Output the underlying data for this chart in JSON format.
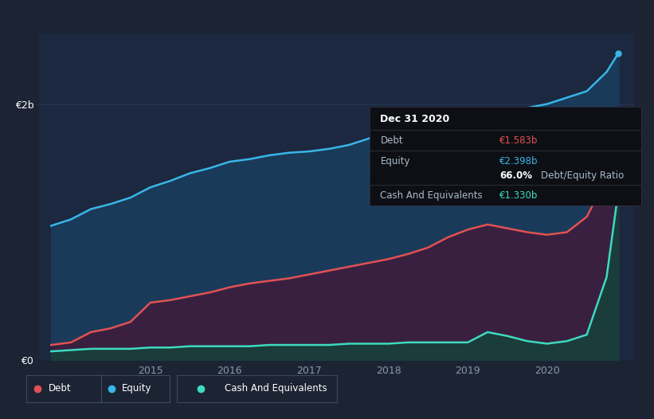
{
  "background_color": "#1c2333",
  "plot_bg": "#1c2840",
  "tooltip_bg": "#0d0f14",
  "title": "Dec 31 2020",
  "tooltip": {
    "date": "Dec 31 2020",
    "debt_label": "Debt",
    "debt_value": "€1.583b",
    "equity_label": "Equity",
    "equity_value": "€2.398b",
    "ratio": "66.0%",
    "ratio_label": "Debt/Equity Ratio",
    "cash_label": "Cash And Equivalents",
    "cash_value": "€1.330b"
  },
  "years": [
    2013.75,
    2014.0,
    2014.25,
    2014.5,
    2014.75,
    2015.0,
    2015.25,
    2015.5,
    2015.75,
    2016.0,
    2016.25,
    2016.5,
    2016.75,
    2017.0,
    2017.25,
    2017.5,
    2017.75,
    2018.0,
    2018.25,
    2018.5,
    2018.75,
    2019.0,
    2019.25,
    2019.5,
    2019.75,
    2020.0,
    2020.25,
    2020.5,
    2020.75,
    2020.9
  ],
  "equity": [
    1.05,
    1.1,
    1.18,
    1.22,
    1.27,
    1.35,
    1.4,
    1.46,
    1.5,
    1.55,
    1.57,
    1.6,
    1.62,
    1.63,
    1.65,
    1.68,
    1.73,
    1.78,
    1.84,
    1.87,
    1.91,
    1.93,
    1.97,
    1.96,
    1.97,
    2.0,
    2.05,
    2.1,
    2.25,
    2.398
  ],
  "debt": [
    0.12,
    0.14,
    0.22,
    0.25,
    0.3,
    0.45,
    0.47,
    0.5,
    0.53,
    0.57,
    0.6,
    0.62,
    0.64,
    0.67,
    0.7,
    0.73,
    0.76,
    0.79,
    0.83,
    0.88,
    0.96,
    1.02,
    1.06,
    1.03,
    1.0,
    0.98,
    1.0,
    1.12,
    1.42,
    1.583
  ],
  "cash": [
    0.07,
    0.08,
    0.09,
    0.09,
    0.09,
    0.1,
    0.1,
    0.11,
    0.11,
    0.11,
    0.11,
    0.12,
    0.12,
    0.12,
    0.12,
    0.13,
    0.13,
    0.13,
    0.14,
    0.14,
    0.14,
    0.14,
    0.22,
    0.19,
    0.15,
    0.13,
    0.15,
    0.2,
    0.65,
    1.33
  ],
  "colors": {
    "debt": "#e05252",
    "equity": "#38b6e8",
    "cash": "#3ddbbf",
    "equity_fill": "#1a3a5a",
    "debt_fill": "#3a2040",
    "cash_fill": "#1a3c3a",
    "grid": "#2a3a55"
  },
  "xlim": [
    2013.6,
    2021.1
  ],
  "ylim": [
    0,
    2.55
  ],
  "yticks": [
    0,
    2.0
  ],
  "ytick_labels": [
    "€0",
    "€2b"
  ],
  "xtick_years": [
    2015,
    2016,
    2017,
    2018,
    2019,
    2020
  ],
  "legend_items": [
    "Debt",
    "Equity",
    "Cash And Equivalents"
  ]
}
